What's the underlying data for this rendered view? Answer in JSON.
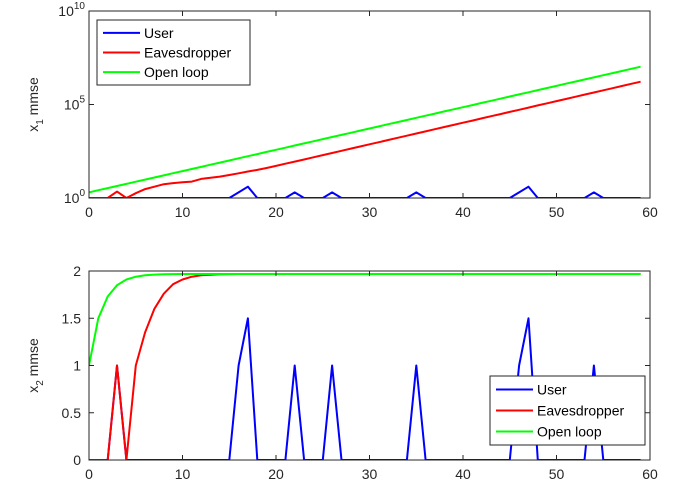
{
  "colors": {
    "user": "#0000ff",
    "eavesdropper": "#ff0000",
    "open_loop": "#00ff00"
  },
  "chart_data": [
    {
      "type": "line",
      "ylabel": "x",
      "ylabel_sub": "1",
      "ylabel_suffix": " mmse",
      "yscale": "log",
      "xlim": [
        0,
        60
      ],
      "ylim": [
        1,
        10000000000
      ],
      "x_ticks": [
        "0",
        "10",
        "20",
        "30",
        "40",
        "50",
        "60"
      ],
      "y_ticks": [
        {
          "value": 1,
          "base": "10",
          "exp": "0"
        },
        {
          "value": 100000,
          "base": "10",
          "exp": "5"
        },
        {
          "value": 10000000000,
          "base": "10",
          "exp": "10"
        }
      ],
      "legend_position": "top-left",
      "series": [
        {
          "name": "User",
          "color": "#0000ff",
          "x": [
            0,
            1,
            2,
            3,
            4,
            5,
            6,
            7,
            8,
            9,
            10,
            11,
            12,
            13,
            14,
            15,
            16,
            17,
            18,
            19,
            20,
            21,
            22,
            23,
            24,
            25,
            26,
            27,
            28,
            29,
            30,
            31,
            32,
            33,
            34,
            35,
            36,
            37,
            38,
            39,
            40,
            41,
            42,
            43,
            44,
            45,
            46,
            47,
            48,
            49,
            50,
            51,
            52,
            53,
            54,
            55,
            56,
            57,
            58,
            59
          ],
          "y": [
            1,
            1,
            1,
            1,
            1,
            1,
            1,
            1,
            1,
            1,
            1,
            1,
            1,
            1,
            1,
            1,
            2,
            4,
            1,
            1,
            1,
            1,
            2,
            1,
            1,
            1,
            2,
            1,
            1,
            1,
            1,
            1,
            1,
            1,
            1,
            2,
            1,
            1,
            1,
            1,
            1,
            1,
            1,
            1,
            1,
            1,
            2,
            4,
            1,
            1,
            1,
            1,
            1,
            1,
            2,
            1,
            1,
            1,
            1,
            1
          ]
        },
        {
          "name": "Eavesdropper",
          "color": "#ff0000",
          "x": [
            0,
            1,
            2,
            3,
            4,
            5,
            6,
            7,
            8,
            9,
            10,
            11,
            12,
            13,
            14,
            15,
            16,
            17,
            18,
            19,
            20,
            21,
            22,
            23,
            24,
            25,
            26,
            27,
            28,
            29,
            30,
            31,
            32,
            33,
            34,
            35,
            36,
            37,
            38,
            39,
            40,
            41,
            42,
            43,
            44,
            45,
            46,
            47,
            48,
            49,
            50,
            51,
            52,
            53,
            54,
            55,
            56,
            57,
            58,
            59
          ],
          "y": [
            1,
            1,
            1,
            2.2,
            1,
            1.8,
            3,
            4,
            5.5,
            6.3,
            7,
            7.5,
            10.5,
            12,
            14,
            17,
            21,
            26,
            32,
            40,
            52,
            68,
            88,
            115,
            150,
            196,
            256,
            334,
            436,
            569,
            742,
            968,
            1263,
            1648,
            2150,
            2805,
            3660,
            4775,
            6230,
            8130,
            10600,
            13830,
            18050,
            23550,
            30720,
            40080,
            52300,
            68230,
            89000,
            116100,
            151500,
            197700,
            258000,
            336500,
            439000,
            572800,
            747400,
            975000,
            1272000,
            1660000
          ]
        },
        {
          "name": "Open loop",
          "color": "#00ff00",
          "x": [
            0,
            1,
            2,
            3,
            4,
            5,
            6,
            7,
            8,
            9,
            10,
            11,
            12,
            13,
            14,
            15,
            16,
            17,
            18,
            19,
            20,
            21,
            22,
            23,
            24,
            25,
            26,
            27,
            28,
            29,
            30,
            31,
            32,
            33,
            34,
            35,
            36,
            37,
            38,
            39,
            40,
            41,
            42,
            43,
            44,
            45,
            46,
            47,
            48,
            49,
            50,
            51,
            52,
            53,
            54,
            55,
            56,
            57,
            58,
            59
          ],
          "y": [
            2,
            2.6,
            3.4,
            4.4,
            5.7,
            7.4,
            9.6,
            12.5,
            16.2,
            21.1,
            27.4,
            35.6,
            46.3,
            60.2,
            78.3,
            101.8,
            132.4,
            172.1,
            223.7,
            290.8,
            378.1,
            491.5,
            639,
            830.7,
            1080,
            1404,
            1825,
            2372,
            3084,
            4009,
            5212,
            6776,
            8808,
            11450,
            14890,
            19350,
            25160,
            32710,
            42520,
            55280,
            71860,
            93420,
            121400,
            157900,
            205300,
            266900,
            346900,
            451000,
            586300,
            762200,
            990800,
            1288000,
            1675000,
            2177000,
            2830000,
            3679000,
            4783000,
            6218000,
            8084000,
            10510000
          ]
        }
      ]
    },
    {
      "type": "line",
      "ylabel": "x",
      "ylabel_sub": "2",
      "ylabel_suffix": " mmse",
      "yscale": "linear",
      "xlim": [
        0,
        60
      ],
      "ylim": [
        0,
        2
      ],
      "x_ticks": [
        "0",
        "10",
        "20",
        "30",
        "40",
        "50",
        "60"
      ],
      "y_ticks": [
        {
          "value": 0,
          "label": "0"
        },
        {
          "value": 0.5,
          "label": "0.5"
        },
        {
          "value": 1,
          "label": "1"
        },
        {
          "value": 1.5,
          "label": "1.5"
        },
        {
          "value": 2,
          "label": "2"
        }
      ],
      "legend_position": "bottom-right",
      "series": [
        {
          "name": "User",
          "color": "#0000ff",
          "x": [
            0,
            1,
            2,
            3,
            4,
            5,
            6,
            7,
            8,
            9,
            10,
            11,
            12,
            13,
            14,
            15,
            16,
            17,
            18,
            19,
            20,
            21,
            22,
            23,
            24,
            25,
            26,
            27,
            28,
            29,
            30,
            31,
            32,
            33,
            34,
            35,
            36,
            37,
            38,
            39,
            40,
            41,
            42,
            43,
            44,
            45,
            46,
            47,
            48,
            49,
            50,
            51,
            52,
            53,
            54,
            55,
            56,
            57,
            58,
            59
          ],
          "y": [
            0,
            0,
            0,
            1,
            0,
            0,
            0,
            0,
            0,
            0,
            0,
            0,
            0,
            0,
            0,
            0,
            1,
            1.5,
            0,
            0,
            0,
            0,
            1,
            0,
            0,
            0,
            1,
            0,
            0,
            0,
            0,
            0,
            0,
            0,
            0,
            1,
            0,
            0,
            0,
            0,
            0,
            0,
            0,
            0,
            0,
            0,
            1,
            1.5,
            0,
            0,
            0,
            0,
            0,
            0,
            1,
            0,
            0,
            0,
            0,
            0
          ]
        },
        {
          "name": "Eavesdropper",
          "color": "#ff0000",
          "x": [
            0,
            1,
            2,
            3,
            4,
            5,
            6,
            7,
            8,
            9,
            10,
            11,
            12,
            13,
            14,
            15,
            16,
            17,
            18,
            19,
            20,
            21,
            22,
            23,
            24,
            25,
            26,
            27,
            28,
            29,
            30,
            31,
            32,
            33,
            34,
            35,
            36,
            37,
            38,
            39,
            40,
            41,
            42,
            43,
            44,
            45,
            46,
            47,
            48,
            49,
            50,
            51,
            52,
            53,
            54,
            55,
            56,
            57,
            58,
            59
          ],
          "y": [
            0,
            0,
            0,
            1,
            0,
            1,
            1.35,
            1.6,
            1.76,
            1.86,
            1.91,
            1.94,
            1.955,
            1.96,
            1.965,
            1.967,
            1.968,
            1.968,
            1.968,
            1.968,
            1.968,
            1.968,
            1.968,
            1.968,
            1.968,
            1.968,
            1.968,
            1.968,
            1.968,
            1.968,
            1.968,
            1.968,
            1.968,
            1.968,
            1.968,
            1.968,
            1.968,
            1.968,
            1.968,
            1.968,
            1.968,
            1.968,
            1.968,
            1.968,
            1.968,
            1.968,
            1.968,
            1.968,
            1.968,
            1.968,
            1.968,
            1.968,
            1.968,
            1.968,
            1.968,
            1.968,
            1.968,
            1.968,
            1.968,
            1.968
          ]
        },
        {
          "name": "Open loop",
          "color": "#00ff00",
          "x": [
            0,
            1,
            2,
            3,
            4,
            5,
            6,
            7,
            8,
            9,
            10,
            11,
            12,
            13,
            14,
            15,
            16,
            17,
            18,
            19,
            20,
            21,
            22,
            23,
            24,
            25,
            26,
            27,
            28,
            29,
            30,
            31,
            32,
            33,
            34,
            35,
            36,
            37,
            38,
            39,
            40,
            41,
            42,
            43,
            44,
            45,
            46,
            47,
            48,
            49,
            50,
            51,
            52,
            53,
            54,
            55,
            56,
            57,
            58,
            59
          ],
          "y": [
            1,
            1.5,
            1.73,
            1.85,
            1.91,
            1.94,
            1.955,
            1.962,
            1.965,
            1.967,
            1.968,
            1.968,
            1.968,
            1.968,
            1.968,
            1.968,
            1.968,
            1.968,
            1.968,
            1.968,
            1.968,
            1.968,
            1.968,
            1.968,
            1.968,
            1.968,
            1.968,
            1.968,
            1.968,
            1.968,
            1.968,
            1.968,
            1.968,
            1.968,
            1.968,
            1.968,
            1.968,
            1.968,
            1.968,
            1.968,
            1.968,
            1.968,
            1.968,
            1.968,
            1.968,
            1.968,
            1.968,
            1.968,
            1.968,
            1.968,
            1.968,
            1.968,
            1.968,
            1.968,
            1.968,
            1.968,
            1.968,
            1.968,
            1.968,
            1.968
          ]
        }
      ]
    }
  ]
}
